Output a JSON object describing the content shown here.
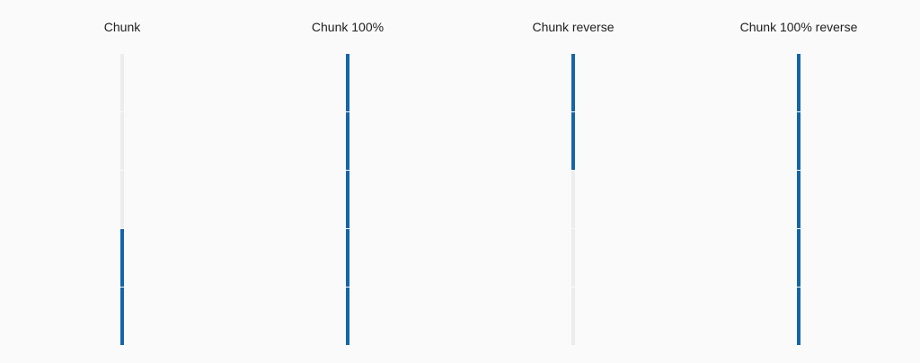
{
  "colors": {
    "background": "#fafafa",
    "filled": "#1565a7",
    "empty": "#ececec",
    "text": "#212121"
  },
  "bars": [
    {
      "id": "chunk",
      "label": "Chunk",
      "value_percent": 40,
      "reverse": false,
      "chunks": 5
    },
    {
      "id": "chunk-100",
      "label": "Chunk 100%",
      "value_percent": 100,
      "reverse": false,
      "chunks": 5
    },
    {
      "id": "chunk-reverse",
      "label": "Chunk reverse",
      "value_percent": 40,
      "reverse": true,
      "chunks": 5
    },
    {
      "id": "chunk-100-reverse",
      "label": "Chunk 100% reverse",
      "value_percent": 100,
      "reverse": true,
      "chunks": 5
    }
  ]
}
